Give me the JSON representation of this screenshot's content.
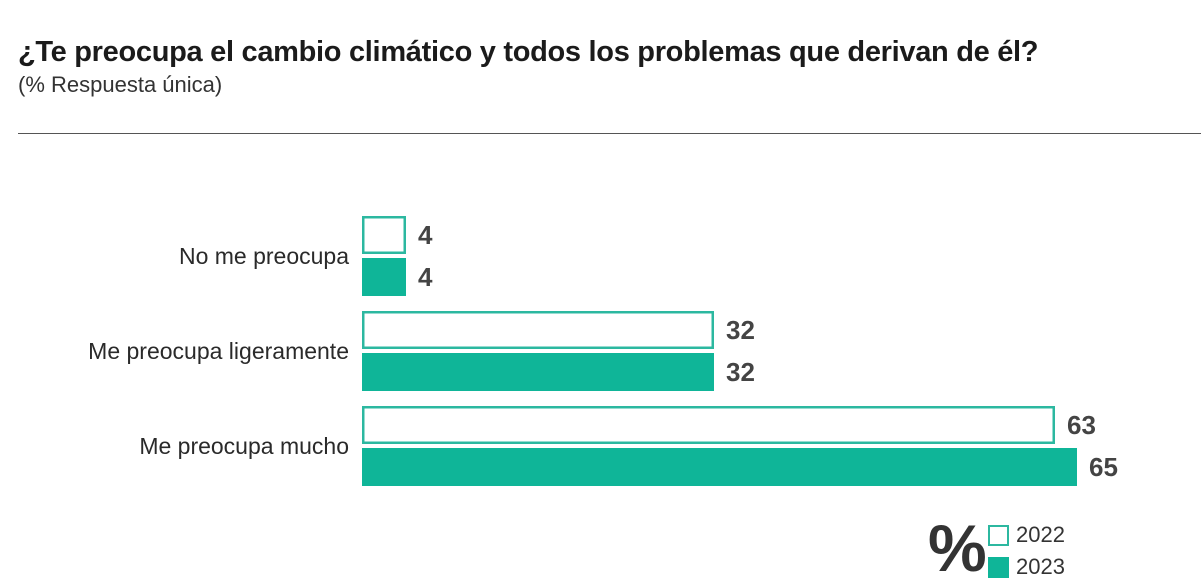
{
  "title": "¿Te preocupa el cambio climático y todos los problemas que derivan de él?",
  "subtitle": "(% Respuesta única)",
  "colors": {
    "accent": "#0fb598",
    "outline": "#2cb8a0",
    "text": "#444444"
  },
  "legend": {
    "unit_symbol": "%"
  },
  "chart_data": {
    "type": "bar",
    "orientation": "horizontal",
    "categories": [
      "No me preocupa",
      "Me preocupa ligeramente",
      "Me preocupa mucho"
    ],
    "series": [
      {
        "name": "2022",
        "values": [
          4,
          32,
          63
        ],
        "style": "outline"
      },
      {
        "name": "2023",
        "values": [
          4,
          32,
          65
        ],
        "style": "filled"
      }
    ],
    "xlim": [
      0,
      65
    ],
    "grid": false,
    "legend_position": "bottom-right"
  }
}
